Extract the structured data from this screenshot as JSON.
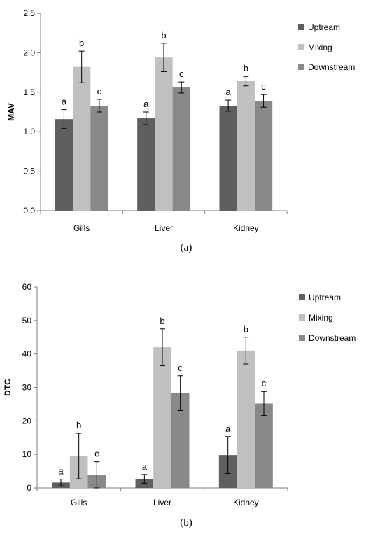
{
  "chart_data": [
    {
      "type": "bar",
      "panel_label": "(a)",
      "ylabel": "MAV",
      "ylim": [
        0,
        2.5
      ],
      "yticks": [
        "0.0",
        "0.5",
        "1.0",
        "1.5",
        "2.0",
        "2.5"
      ],
      "categories": [
        "Gills",
        "Liver",
        "Kidney"
      ],
      "legend_position": "right",
      "series": [
        {
          "name": "Uptream",
          "color": "#5f5f5f",
          "values": [
            1.16,
            1.17,
            1.33
          ],
          "errors": [
            0.12,
            0.08,
            0.07
          ],
          "labels": [
            "a",
            "a",
            "a"
          ]
        },
        {
          "name": "Mixing",
          "color": "#c0c0c0",
          "values": [
            1.82,
            1.94,
            1.64
          ],
          "errors": [
            0.2,
            0.18,
            0.06
          ],
          "labels": [
            "b",
            "b",
            "b"
          ]
        },
        {
          "name": "Downstream",
          "color": "#898989",
          "values": [
            1.33,
            1.56,
            1.39
          ],
          "errors": [
            0.08,
            0.07,
            0.08
          ],
          "labels": [
            "c",
            "c",
            "c"
          ]
        }
      ]
    },
    {
      "type": "bar",
      "panel_label": "(b)",
      "ylabel": "DTC",
      "ylim": [
        0,
        60
      ],
      "yticks": [
        "0",
        "10",
        "20",
        "30",
        "40",
        "50",
        "60"
      ],
      "categories": [
        "Gills",
        "Liver",
        "Kidney"
      ],
      "legend_position": "right",
      "series": [
        {
          "name": "Uptream",
          "color": "#5f5f5f",
          "values": [
            1.6,
            2.7,
            9.8
          ],
          "errors": [
            1.0,
            1.3,
            5.5
          ],
          "labels": [
            "a",
            "a",
            "a"
          ]
        },
        {
          "name": "Mixing",
          "color": "#c0c0c0",
          "values": [
            9.5,
            42.0,
            41.0
          ],
          "errors": [
            6.8,
            5.5,
            4.0
          ],
          "labels": [
            "b",
            "b",
            "b"
          ]
        },
        {
          "name": "Downstream",
          "color": "#898989",
          "values": [
            3.8,
            28.3,
            25.2
          ],
          "errors": [
            4.0,
            5.2,
            3.6
          ],
          "labels": [
            "c",
            "c",
            "c"
          ]
        }
      ]
    }
  ]
}
